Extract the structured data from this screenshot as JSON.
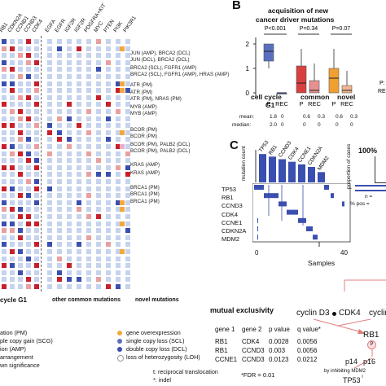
{
  "panelA": {
    "genes": [
      "RB1",
      "CDKN2A",
      "CCND1",
      "CCND3",
      "CDK4",
      "EGFA",
      "EGFR",
      "IGF2R",
      "IGF2R",
      "PDGFRA+KIT",
      "MYC",
      "PTEN",
      "PI3K",
      "PIK3R1"
    ],
    "row_labels": [
      "JUN (AMP), BRCA2 (DCL)",
      "JUN (DCL), BRCA2 (DCL)",
      "BRCA2 (SCL), FGFR1 (AMP)",
      "BRCA2 (SCL), FGFR1 (AMP), HRAS (AMP)",
      "ATR (PM)",
      "ATR (PM)",
      "ATR (PM), NRAS (PM)",
      "MYB (AMP)",
      "MYB (AMP)",
      "BCOR (PM)",
      "BCOR (PM)",
      "BCOR (PM), PALB2 (DCL)",
      "BCOR (PM), PALB2 (DCL)",
      "KRAS (AMP)",
      "KRAS (AMP)",
      "BRCA1 (PM)",
      "BRCA1 (PM)",
      "BRCA1 (PM)"
    ],
    "group_labels": {
      "cycle": "cycle G1",
      "other": "other common mutations",
      "novel": "novel mutations"
    },
    "legend_left": [
      "ation (PM)",
      "ple copy gain (SCG)",
      "ion (AMP)",
      "arrangement",
      "wn significance"
    ],
    "legend_right": [
      "gene overexpression",
      "single copy loss (SCL)",
      "double copy loss (DCL)",
      "loss of heterozygosity (LOH)"
    ],
    "footnotes": [
      "t: reciprocal translocation",
      "*: indel"
    ]
  },
  "panelB": {
    "letter": "B",
    "title_line1": "acquisition of new",
    "title_line2": "cancer driver mutations",
    "pvalues": [
      "P<0.001",
      "P=0.34",
      "P=0.07"
    ],
    "y_ticks": [
      "2",
      "1",
      "0"
    ],
    "x_ticks": [
      "P",
      "REC",
      "P",
      "REC",
      "P",
      "REC"
    ],
    "group_names": [
      "cell cycle",
      "common",
      "novel"
    ],
    "group_sub": "G1",
    "stats_labels": [
      "mean:",
      "median:"
    ],
    "means": [
      "1.8",
      "0",
      "0.6",
      "0.3",
      "0.6",
      "0.3"
    ],
    "medians": [
      "2.0",
      "0",
      "0",
      "0",
      "0",
      "0"
    ],
    "partial_right": [
      "P:",
      "RE"
    ]
  },
  "panelC": {
    "letter": "C",
    "bar_genes": [
      "TP53",
      "RB1",
      "CCND3",
      "CDK4",
      "CCNE1",
      "CDKN2A",
      "MDM2"
    ],
    "bar_values": [
      11,
      10,
      9,
      8,
      7,
      6,
      4
    ],
    "y_axis_label": "mutation count",
    "right_axis_label": "proportion of cases",
    "pct_label": "100%",
    "matrix_genes": [
      "TP53",
      "RB1",
      "CCND3",
      "CDK4",
      "CCNE1",
      "CDKN2A",
      "MDM2"
    ],
    "x_ticks": [
      "0",
      "40"
    ],
    "x_label": "Samples",
    "n_label": "n =",
    "pos_label": "% pos ="
  },
  "mutual": {
    "title": "mutual exclusivity",
    "headers": [
      "gene 1",
      "gene 2",
      "p value",
      "q value*"
    ],
    "rows": [
      [
        "RB1",
        "CDK4",
        "0.0028",
        "0.0056"
      ],
      [
        "RB1",
        "CCND3",
        "0.003",
        "0.0056"
      ],
      [
        "CCNE1",
        "CCND3",
        "0.0123",
        "0.0212"
      ]
    ],
    "fdr": "*FDR = 0.01"
  },
  "pathway": {
    "cyclin_d3": "cyclin D3",
    "cdk4": "CDK4",
    "cyclin_partial": "cyclin",
    "rb1": "RB1",
    "p": "P",
    "p14": "p14",
    "p16": "p16",
    "inhibit": "by inhibiting MDM2",
    "tp53": "TP53"
  },
  "colors": {
    "blue": "#3a4fb0",
    "light_blue": "#c5d3ee",
    "red": "#c8202a",
    "light_red": "#e8a0a0",
    "green": "#4a8c3a",
    "orange": "#f2a83a",
    "pink": "#e8b0c8",
    "box_blue": "#5a6fc0",
    "box_red": "#d84040",
    "box_orange": "#f0a030"
  }
}
